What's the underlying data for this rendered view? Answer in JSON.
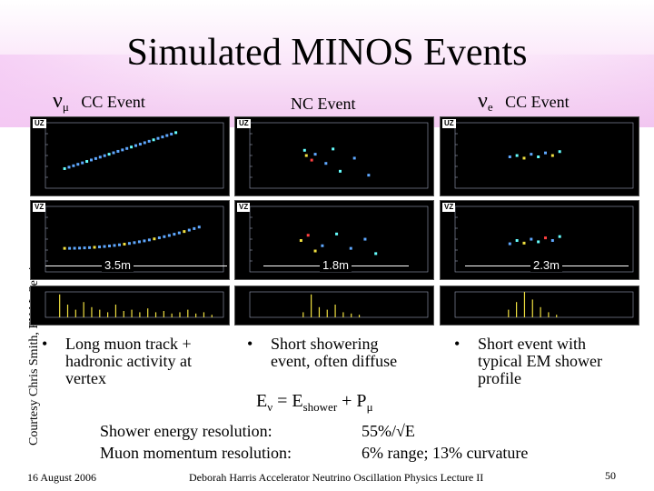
{
  "title": "Simulated MINOS Events",
  "side_credit": "Courtesy Chris Smith, FNAL Seminar",
  "headers": {
    "numu_greek": "ν",
    "numu_sub": "μ",
    "numu_label": "CC Event",
    "nc_label": "NC Event",
    "nue_greek": "ν",
    "nue_sub": "e",
    "nue_label": "CC Event"
  },
  "axis_tags": {
    "top": "UZ",
    "middle": "VZ"
  },
  "panel_tags": {
    "uz": "UZ",
    "vz": "VZ"
  },
  "scale_labels": [
    "3.5m",
    "1.8m",
    "2.3m"
  ],
  "bullets": [
    {
      "symbol": "•",
      "lines": [
        "Long muon track +",
        "hadronic activity at",
        "vertex"
      ]
    },
    {
      "symbol": "•",
      "lines": [
        "Short showering",
        "event, often diffuse"
      ]
    },
    {
      "symbol": "•",
      "lines": [
        "Short event with",
        "typical EM shower",
        "profile"
      ]
    }
  ],
  "formula": {
    "e": "E",
    "nu": "ν",
    "eq": " = E",
    "shower": "shower",
    "plus": " + P",
    "mu": "μ"
  },
  "resolutions": [
    {
      "label": "Shower energy resolution:",
      "value": "55%/√E"
    },
    {
      "label": "Muon momentum resolution:",
      "value": "6% range; 13% curvature"
    }
  ],
  "footer": {
    "date": "16 August 2006",
    "center": "Deborah Harris Accelerator Neutrino Oscillation Physics Lecture II",
    "page": "50"
  },
  "colors": {
    "panel_bg": "#000000",
    "hit_blue": "#5fa8ff",
    "hit_cyan": "#66ffff",
    "hit_yellow": "#f0e040",
    "hit_red": "#ff4040",
    "grid": "#9aa0b8",
    "hist": "#f0e040"
  }
}
